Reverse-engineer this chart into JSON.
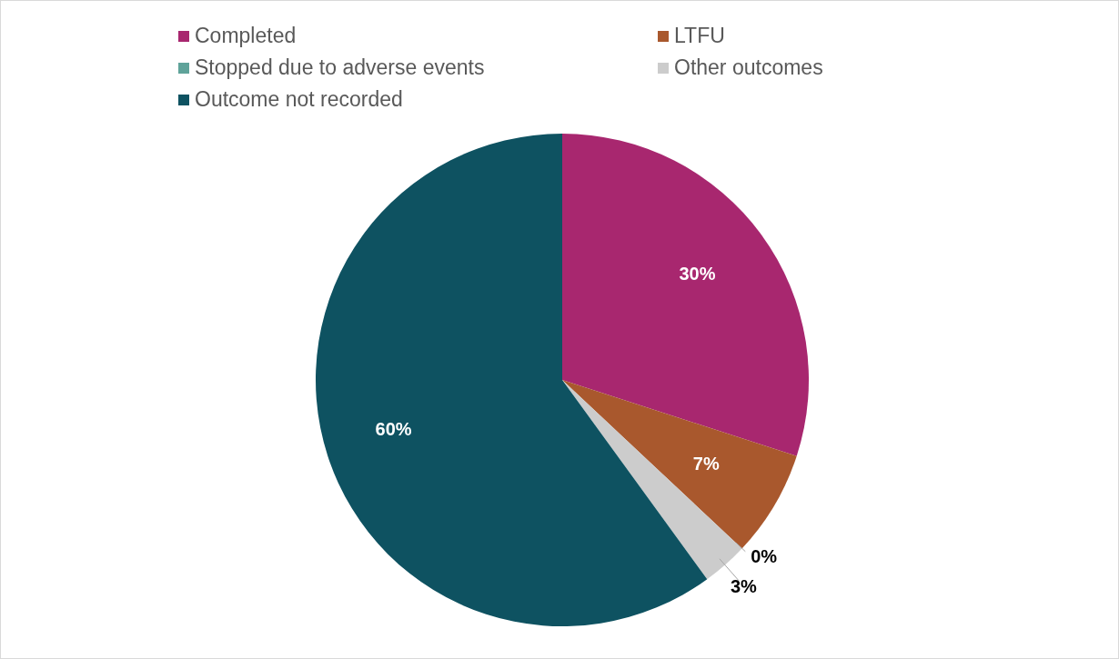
{
  "chart_data": {
    "type": "pie",
    "categories": [
      "Completed",
      "LTFU",
      "Stopped due to adverse events",
      "Other outcomes",
      "Outcome not recorded"
    ],
    "values": [
      30,
      7,
      0,
      3,
      60
    ],
    "colors": [
      "#a8276f",
      "#a9582d",
      "#5fa39a",
      "#cccccc",
      "#0e5261"
    ],
    "value_labels": [
      "30%",
      "7%",
      "0%",
      "3%",
      "60%"
    ],
    "legend": "top"
  }
}
